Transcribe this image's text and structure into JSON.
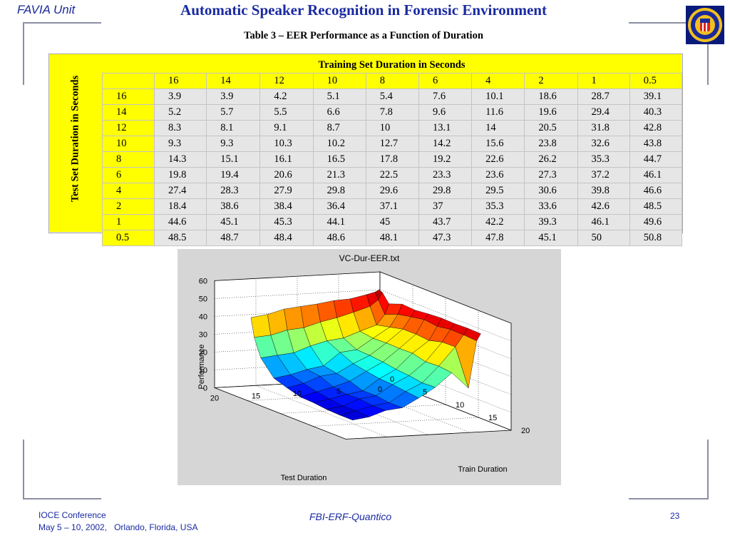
{
  "header": {
    "unit": "FAVIA Unit",
    "title": "Automatic Speaker Recognition in Forensic Environment"
  },
  "caption": "Table 3 – EER Performance as a Function of Duration",
  "table": {
    "train_header": "Training Set Duration in Seconds",
    "test_header": "Test Set Duration in Seconds",
    "columns": [
      "16",
      "14",
      "12",
      "10",
      "8",
      "6",
      "4",
      "2",
      "1",
      "0.5"
    ],
    "rows": [
      {
        "label": "16",
        "values": [
          "3.9",
          "3.9",
          "4.2",
          "5.1",
          "5.4",
          "7.6",
          "10.1",
          "18.6",
          "28.7",
          "39.1"
        ]
      },
      {
        "label": "14",
        "values": [
          "5.2",
          "5.7",
          "5.5",
          "6.6",
          "7.8",
          "9.6",
          "11.6",
          "19.6",
          "29.4",
          "40.3"
        ]
      },
      {
        "label": "12",
        "values": [
          "8.3",
          "8.1",
          "9.1",
          "8.7",
          "10",
          "13.1",
          "14",
          "20.5",
          "31.8",
          "42.8"
        ]
      },
      {
        "label": "10",
        "values": [
          "9.3",
          "9.3",
          "10.3",
          "10.2",
          "12.7",
          "14.2",
          "15.6",
          "23.8",
          "32.6",
          "43.8"
        ]
      },
      {
        "label": "8",
        "values": [
          "14.3",
          "15.1",
          "16.1",
          "16.5",
          "17.8",
          "19.2",
          "22.6",
          "26.2",
          "35.3",
          "44.7"
        ]
      },
      {
        "label": "6",
        "values": [
          "19.8",
          "19.4",
          "20.6",
          "21.3",
          "22.5",
          "23.3",
          "23.6",
          "27.3",
          "37.2",
          "46.1"
        ]
      },
      {
        "label": "4",
        "values": [
          "27.4",
          "28.3",
          "27.9",
          "29.8",
          "29.6",
          "29.8",
          "29.5",
          "30.6",
          "39.8",
          "46.6"
        ]
      },
      {
        "label": "2",
        "values": [
          "18.4",
          "38.6",
          "38.4",
          "36.4",
          "37.1",
          "37",
          "35.3",
          "33.6",
          "42.6",
          "48.5"
        ]
      },
      {
        "label": "1",
        "values": [
          "44.6",
          "45.1",
          "45.3",
          "44.1",
          "45",
          "43.7",
          "42.2",
          "39.3",
          "46.1",
          "49.6"
        ]
      },
      {
        "label": "0.5",
        "values": [
          "48.5",
          "48.7",
          "48.4",
          "48.6",
          "48.1",
          "47.3",
          "47.8",
          "45.1",
          "50",
          "50.8"
        ]
      }
    ]
  },
  "chart_data": {
    "type": "surface",
    "title": "VC-Dur-EER.txt",
    "zlabel": "Performance",
    "xlabel": "Train Duration",
    "ylabel": "Test Duration",
    "zlim": [
      0,
      60
    ],
    "z_ticks": [
      "0",
      "10",
      "20",
      "30",
      "40",
      "50",
      "60"
    ],
    "train_ticks": [
      "0",
      "5",
      "10",
      "15",
      "20"
    ],
    "test_ticks": [
      "0",
      "5",
      "10",
      "15",
      "20"
    ],
    "train": [
      16,
      14,
      12,
      10,
      8,
      6,
      4,
      2,
      1,
      0.5
    ],
    "test": [
      16,
      14,
      12,
      10,
      8,
      6,
      4,
      2,
      1,
      0.5
    ],
    "z": [
      [
        3.9,
        3.9,
        4.2,
        5.1,
        5.4,
        7.6,
        10.1,
        18.6,
        28.7,
        39.1
      ],
      [
        5.2,
        5.7,
        5.5,
        6.6,
        7.8,
        9.6,
        11.6,
        19.6,
        29.4,
        40.3
      ],
      [
        8.3,
        8.1,
        9.1,
        8.7,
        10,
        13.1,
        14,
        20.5,
        31.8,
        42.8
      ],
      [
        9.3,
        9.3,
        10.3,
        10.2,
        12.7,
        14.2,
        15.6,
        23.8,
        32.6,
        43.8
      ],
      [
        14.3,
        15.1,
        16.1,
        16.5,
        17.8,
        19.2,
        22.6,
        26.2,
        35.3,
        44.7
      ],
      [
        19.8,
        19.4,
        20.6,
        21.3,
        22.5,
        23.3,
        23.6,
        27.3,
        37.2,
        46.1
      ],
      [
        27.4,
        28.3,
        27.9,
        29.8,
        29.6,
        29.8,
        29.5,
        30.6,
        39.8,
        46.6
      ],
      [
        18.4,
        38.6,
        38.4,
        36.4,
        37.1,
        37,
        35.3,
        33.6,
        42.6,
        48.5
      ],
      [
        44.6,
        45.1,
        45.3,
        44.1,
        45,
        43.7,
        42.2,
        39.3,
        46.1,
        49.6
      ],
      [
        48.5,
        48.7,
        48.4,
        48.6,
        48.1,
        47.3,
        47.8,
        45.1,
        50,
        50.8
      ]
    ],
    "grid": true,
    "colormap": "jet"
  },
  "footer": {
    "conference": "IOCE Conference",
    "date_place": "May 5 – 10, 2002,   Orlando, Florida, USA",
    "org": "FBI-ERF-Quantico",
    "page": "23"
  },
  "colors": {
    "accent": "#1a2aa0",
    "table_highlight": "#ffff00",
    "frame": "#8a8fa3"
  },
  "icons": {
    "seal": "fbi-seal-icon"
  }
}
